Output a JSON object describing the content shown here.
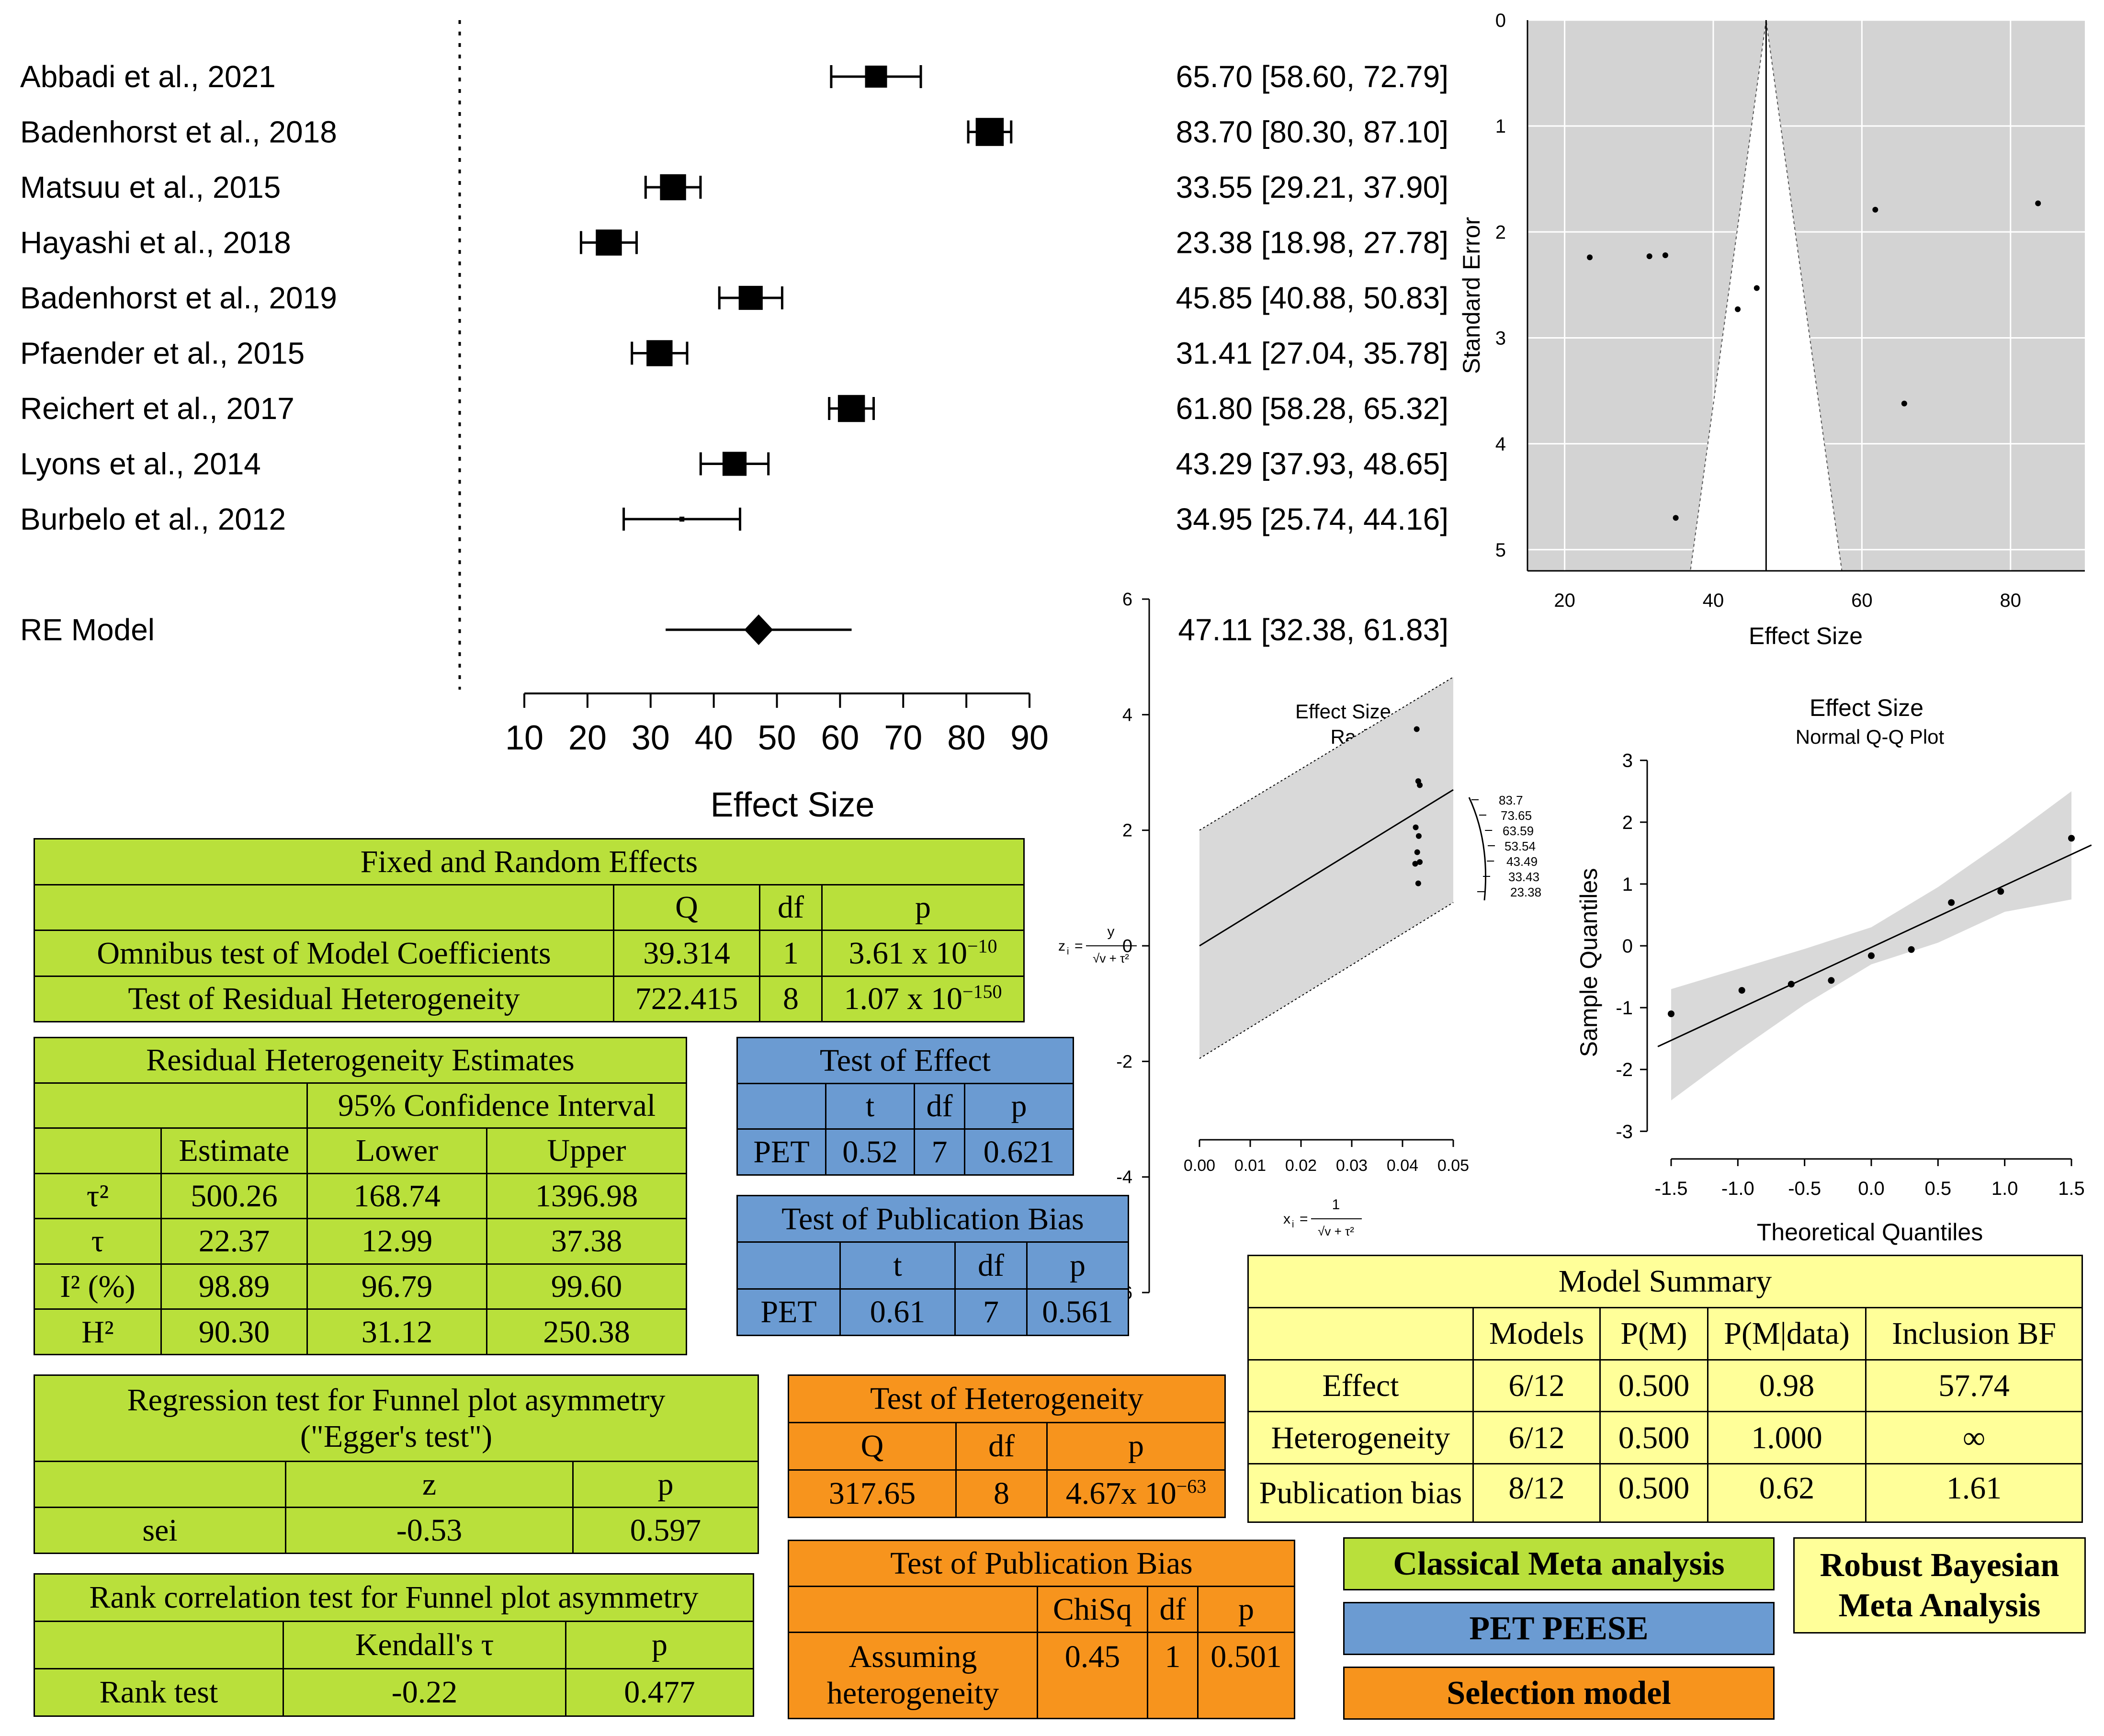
{
  "forest": {
    "axis_label": "Effect Size",
    "ticks": [
      10,
      20,
      30,
      40,
      50,
      60,
      70,
      80,
      90
    ]
  },
  "funnel": {
    "xlabel": "Effect Size",
    "ylabel": "Standard Error"
  },
  "radial": {
    "title": "Effect Size",
    "subtitle": "Radial Plot",
    "zlabel_lhs": "z",
    "zlabel_i": "i",
    "zlabel_eq": "=",
    "zlabel_num": "y",
    "zlabel_den": "√v + τ²",
    "xlabel_lhs": "x",
    "xlabel_i": "i",
    "xlabel_eq": "=",
    "xlabel_num": "1",
    "xlabel_den": "√v + τ²",
    "xticks": [
      "0.00",
      "0.01",
      "0.02",
      "0.03",
      "0.04",
      "0.05"
    ],
    "yticks": [
      "6",
      "4",
      "2",
      "0",
      "-2",
      "-4",
      "-6"
    ],
    "arc_labels": [
      "83.7",
      "73.65",
      "63.59",
      "53.54",
      "43.49",
      "33.43",
      "23.38"
    ]
  },
  "qq": {
    "title": "Effect Size",
    "subtitle": "Normal Q-Q Plot",
    "xlabel": "Theoretical Quantiles",
    "ylabel": "Sample Quantiles",
    "xticks": [
      "-1.5",
      "-1.0",
      "-0.5",
      "0.0",
      "0.5",
      "1.0",
      "1.5"
    ],
    "yticks": [
      "3",
      "2",
      "1",
      "0",
      "-1",
      "-2",
      "-3"
    ]
  },
  "chart_data": [
    {
      "type": "forest",
      "xlabel": "Effect Size",
      "xlim": [
        10,
        90
      ],
      "studies": [
        {
          "label": "Abbadi et al., 2021",
          "est": 65.7,
          "lo": 58.6,
          "hi": 72.79,
          "ci_text": "65.70 [58.60, 72.79]",
          "weight": 1.0
        },
        {
          "label": "Badenhorst et al., 2018",
          "est": 83.7,
          "lo": 80.3,
          "hi": 87.1,
          "ci_text": "83.70 [80.30, 87.10]",
          "weight": 1.3
        },
        {
          "label": "Matsuu et al., 2015",
          "est": 33.55,
          "lo": 29.21,
          "hi": 37.9,
          "ci_text": "33.55 [29.21, 37.90]",
          "weight": 1.2
        },
        {
          "label": "Hayashi et al., 2018",
          "est": 23.38,
          "lo": 18.98,
          "hi": 27.78,
          "ci_text": "23.38 [18.98, 27.78]",
          "weight": 1.2
        },
        {
          "label": "Badenhorst et al., 2019",
          "est": 45.85,
          "lo": 40.88,
          "hi": 50.83,
          "ci_text": "45.85 [40.88, 50.83]",
          "weight": 1.1
        },
        {
          "label": "Pfaender et al., 2015",
          "est": 31.41,
          "lo": 27.04,
          "hi": 35.78,
          "ci_text": "31.41 [27.04, 35.78]",
          "weight": 1.2
        },
        {
          "label": "Reichert et al., 2017",
          "est": 61.8,
          "lo": 58.28,
          "hi": 65.32,
          "ci_text": "61.80 [58.28, 65.32]",
          "weight": 1.25
        },
        {
          "label": "Lyons et al., 2014",
          "est": 43.29,
          "lo": 37.93,
          "hi": 48.65,
          "ci_text": "43.29 [37.93, 48.65]",
          "weight": 1.1
        },
        {
          "label": "Burbelo et al., 2012",
          "est": 34.95,
          "lo": 25.74,
          "hi": 44.16,
          "ci_text": "34.95 [25.74, 44.16]",
          "weight": 0.15
        }
      ],
      "summary": {
        "label": "RE Model",
        "est": 47.11,
        "lo": 32.38,
        "hi": 61.83,
        "ci_text": "47.11 [32.38, 61.83]"
      }
    },
    {
      "type": "scatter",
      "subtype": "funnel",
      "xlabel": "Effect Size",
      "ylabel": "Standard Error",
      "xlim": [
        15,
        90
      ],
      "ylim": [
        5.2,
        0
      ],
      "xticks": [
        20,
        40,
        60,
        80
      ],
      "yticks": [
        0,
        1,
        2,
        3,
        4,
        5
      ],
      "center": 47.11,
      "points": [
        [
          65.7,
          3.62
        ],
        [
          83.7,
          1.73
        ],
        [
          33.55,
          2.22
        ],
        [
          23.38,
          2.24
        ],
        [
          45.85,
          2.53
        ],
        [
          31.41,
          2.23
        ],
        [
          61.8,
          1.79
        ],
        [
          43.29,
          2.73
        ],
        [
          34.95,
          4.7
        ]
      ]
    },
    {
      "type": "scatter",
      "subtype": "radial",
      "title": "Effect Size",
      "subtitle": "Radial Plot",
      "xlim": [
        0,
        0.05
      ],
      "ylim": [
        -6,
        6
      ],
      "xticks": [
        0.0,
        0.01,
        0.02,
        0.03,
        0.04,
        0.05
      ],
      "yticks": [
        -6,
        -4,
        -2,
        0,
        2,
        4,
        6
      ],
      "points": [
        [
          0.0428,
          3.75
        ],
        [
          0.0431,
          2.85
        ],
        [
          0.0434,
          2.78
        ],
        [
          0.0426,
          2.05
        ],
        [
          0.0432,
          1.9
        ],
        [
          0.0429,
          1.62
        ],
        [
          0.0434,
          1.45
        ],
        [
          0.0425,
          1.42
        ],
        [
          0.0431,
          1.08
        ]
      ],
      "band": {
        "x0": 0.0,
        "x1": 0.05,
        "upper0": 2.0,
        "upper1": 4.65,
        "lower0": -1.95,
        "lower1": 0.75,
        "line0": 0.0,
        "line1": 2.7
      }
    },
    {
      "type": "scatter",
      "subtype": "qq",
      "title": "Effect Size",
      "subtitle": "Normal Q-Q Plot",
      "xlabel": "Theoretical Quantiles",
      "ylabel": "Sample Quantiles",
      "xlim": [
        -1.6,
        1.65
      ],
      "ylim": [
        -3,
        3
      ],
      "xticks": [
        -1.5,
        -1.0,
        -0.5,
        0.0,
        0.5,
        1.0,
        1.5
      ],
      "yticks": [
        -3,
        -2,
        -1,
        0,
        1,
        2,
        3
      ],
      "points": [
        [
          -1.5,
          -1.1
        ],
        [
          -0.97,
          -0.72
        ],
        [
          -0.6,
          -0.62
        ],
        [
          -0.3,
          -0.56
        ],
        [
          0.0,
          -0.16
        ],
        [
          0.3,
          -0.06
        ],
        [
          0.6,
          0.7
        ],
        [
          0.97,
          0.88
        ],
        [
          1.5,
          1.74
        ]
      ],
      "line": [
        [
          -1.6,
          -1.63
        ],
        [
          1.65,
          1.63
        ]
      ],
      "band_upper": [
        [
          -1.5,
          -0.7
        ],
        [
          -0.5,
          -0.05
        ],
        [
          0.0,
          0.3
        ],
        [
          0.5,
          0.95
        ],
        [
          1.0,
          1.7
        ],
        [
          1.5,
          2.5
        ]
      ],
      "band_lower": [
        [
          -1.5,
          -2.5
        ],
        [
          -1.0,
          -1.7
        ],
        [
          -0.5,
          -0.95
        ],
        [
          0.0,
          -0.3
        ],
        [
          0.5,
          0.05
        ],
        [
          1.0,
          0.55
        ],
        [
          1.5,
          0.75
        ]
      ]
    }
  ],
  "tables": {
    "fixed_random": {
      "title": "Fixed and Random Effects",
      "headers": [
        "",
        "Q",
        "df",
        "p"
      ],
      "rows": [
        [
          "Omnibus test of Model Coefficients",
          "39.314",
          "1",
          "3.61 x 10",
          "−10"
        ],
        [
          "Test of Residual Heterogeneity",
          "722.415",
          "8",
          "1.07 x 10",
          "−150"
        ]
      ]
    },
    "residual_het": {
      "title": "Residual Heterogeneity Estimates",
      "ci_header": "95% Confidence Interval",
      "headers": [
        "",
        "Estimate",
        "Lower",
        "Upper"
      ],
      "rows": [
        [
          "τ²",
          "500.26",
          "168.74",
          "1396.98"
        ],
        [
          "τ",
          "22.37",
          "12.99",
          "37.38"
        ],
        [
          "I² (%)",
          "98.89",
          "96.79",
          "99.60"
        ],
        [
          "H²",
          "90.30",
          "31.12",
          "250.38"
        ]
      ]
    },
    "egger": {
      "title_line1": "Regression test for Funnel plot asymmetry",
      "title_line2": "(\"Egger's test\")",
      "headers": [
        "",
        "z",
        "p"
      ],
      "rows": [
        [
          "sei",
          "-0.53",
          "0.597"
        ]
      ]
    },
    "rank": {
      "title": "Rank correlation test for Funnel plot asymmetry",
      "headers": [
        "",
        "Kendall's τ",
        "p"
      ],
      "rows": [
        [
          "Rank test",
          "-0.22",
          "0.477"
        ]
      ]
    },
    "pet_effect": {
      "title": "Test of Effect",
      "headers": [
        "",
        "t",
        "df",
        "p"
      ],
      "rows": [
        [
          "PET",
          "0.52",
          "7",
          "0.621"
        ]
      ]
    },
    "pet_bias": {
      "title": "Test of Publication Bias",
      "headers": [
        "",
        "t",
        "df",
        "p"
      ],
      "rows": [
        [
          "PET",
          "0.61",
          "7",
          "0.561"
        ]
      ]
    },
    "sel_het": {
      "title": "Test of Heterogeneity",
      "headers": [
        "Q",
        "df",
        "p"
      ],
      "rows": [
        [
          "317.65",
          "8",
          "4.67x 10",
          "−63"
        ]
      ]
    },
    "sel_bias": {
      "title": "Test of Publication Bias",
      "headers": [
        "",
        "ChiSq",
        "df",
        "p"
      ],
      "rows": [
        [
          "Assuming heterogeneity",
          "0.45",
          "1",
          "0.501"
        ]
      ]
    },
    "model_summary": {
      "title": "Model Summary",
      "headers": [
        "",
        "Models",
        "P(M)",
        "P(M|data)",
        "Inclusion BF"
      ],
      "rows": [
        [
          "Effect",
          "6/12",
          "0.500",
          "0.98",
          "57.74"
        ],
        [
          "Heterogeneity",
          "6/12",
          "0.500",
          "1.000",
          "∞"
        ],
        [
          "Publication bias",
          "8/12",
          "0.500",
          "0.62",
          "1.61"
        ]
      ]
    }
  },
  "legend": {
    "classical": "Classical Meta analysis",
    "pet": "PET PEESE",
    "selection": "Selection model",
    "rob_line1": "Robust Bayesian",
    "rob_line2": "Meta Analysis"
  },
  "colors": {
    "green": "#b9e03b",
    "blue": "#6b9bd2",
    "orange": "#f7941d",
    "yellow": "#ffff99",
    "funnel_bg": "#d3d3d3",
    "band": "#d9d9d9"
  }
}
